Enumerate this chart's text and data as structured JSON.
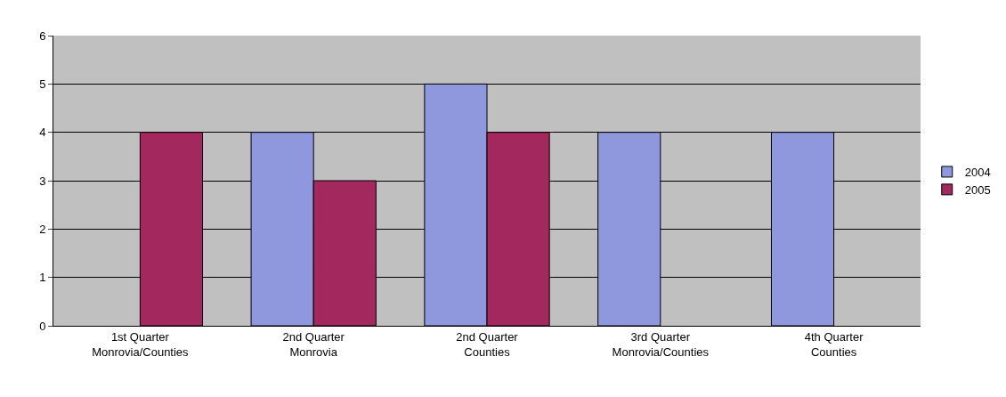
{
  "chart_data": {
    "type": "bar",
    "categories": [
      "1st Quarter\nMonrovia/Counties",
      "2nd Quarter\nMonrovia",
      "2nd Quarter\nCounties",
      "3rd Quarter\nMonrovia/Counties",
      "4th Quarter\nCounties"
    ],
    "series": [
      {
        "name": "2004",
        "color": "#8f98dd",
        "values": [
          null,
          4,
          5,
          4,
          4
        ]
      },
      {
        "name": "2005",
        "color": "#a3285e",
        "values": [
          4,
          3,
          4,
          null,
          null
        ]
      }
    ],
    "ylim": [
      0,
      6
    ],
    "yticks": [
      0,
      1,
      2,
      3,
      4,
      5,
      6
    ],
    "grid": "y",
    "legend": "right"
  }
}
